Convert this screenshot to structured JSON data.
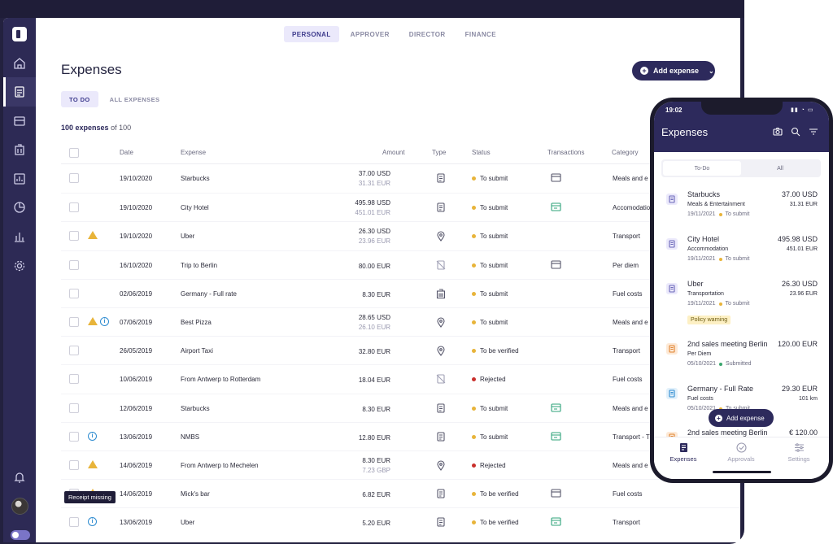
{
  "role_tabs": [
    "PERSONAL",
    "APPROVER",
    "DIRECTOR",
    "FINANCE"
  ],
  "page_title": "Expenses",
  "add_expense_label": "Add expense",
  "sub_tabs": [
    "TO DO",
    "ALL EXPENSES"
  ],
  "count": {
    "shown": "100 expenses",
    "rest": "of 100"
  },
  "columns": [
    "Date",
    "Expense",
    "Amount",
    "Type",
    "Status",
    "Transactions",
    "Category"
  ],
  "rows": [
    {
      "date": "19/10/2020",
      "expense": "Starbucks",
      "amount": "37.00 USD",
      "amount2": "31.31 EUR",
      "status": "To submit",
      "category": "Meals and e",
      "type_icon": "receipt-icon",
      "tx_icon": "card-icon",
      "flags": []
    },
    {
      "date": "19/10/2020",
      "expense": "City Hotel",
      "amount": "495.98 USD",
      "amount2": "451.01 EUR",
      "status": "To submit",
      "category": "Accomodatio",
      "type_icon": "receipt-icon",
      "tx_icon": "card-green-icon",
      "flags": []
    },
    {
      "date": "19/10/2020",
      "expense": "Uber",
      "amount": "26.30 USD",
      "amount2": "23.96 EUR",
      "status": "To submit",
      "category": "Transport",
      "type_icon": "pin-icon",
      "tx_icon": "",
      "flags": [
        "warn"
      ]
    },
    {
      "date": "16/10/2020",
      "expense": "Trip to Berlin",
      "amount": "80.00  EUR",
      "amount2": "",
      "status": "To submit",
      "category": "Per diem",
      "type_icon": "no-receipt-icon",
      "tx_icon": "card-icon",
      "flags": []
    },
    {
      "date": "02/06/2019",
      "expense": "Germany - Full rate",
      "amount": "8.30  EUR",
      "amount2": "",
      "status": "To submit",
      "category": "Fuel costs",
      "type_icon": "building-icon",
      "tx_icon": "",
      "flags": []
    },
    {
      "date": "07/06/2019",
      "expense": "Best Pizza",
      "amount": "28.65 USD",
      "amount2": "26.10 EUR",
      "status": "To submit",
      "category": "Meals and e",
      "type_icon": "pin-icon",
      "tx_icon": "",
      "flags": [
        "warn",
        "info"
      ]
    },
    {
      "date": "26/05/2019",
      "expense": "Airport Taxi",
      "amount": "32.80  EUR",
      "amount2": "",
      "status": "To be verified",
      "category": "Transport",
      "type_icon": "pin-icon",
      "tx_icon": "",
      "flags": []
    },
    {
      "date": "10/06/2019",
      "expense": "From Antwerp to Rotterdam",
      "amount": "18.04  EUR",
      "amount2": "",
      "status": "Rejected",
      "category": "Fuel costs",
      "type_icon": "no-receipt-icon",
      "tx_icon": "",
      "flags": []
    },
    {
      "date": "12/06/2019",
      "expense": "Starbucks",
      "amount": "8.30  EUR",
      "amount2": "",
      "status": "To submit",
      "category": "Meals and e",
      "type_icon": "receipt-icon",
      "tx_icon": "card-green-icon",
      "flags": []
    },
    {
      "date": "13/06/2019",
      "expense": "NMBS",
      "amount": "12.80  EUR",
      "amount2": "",
      "status": "To submit",
      "category": "Transport - T",
      "type_icon": "receipt-icon",
      "tx_icon": "card-green-icon",
      "flags": [
        "info"
      ]
    },
    {
      "date": "14/06/2019",
      "expense": "From Antwerp to Mechelen",
      "amount": "8.30 EUR",
      "amount2": "7.23 GBP",
      "status": "Rejected",
      "category": "Meals and e",
      "type_icon": "pin-icon",
      "tx_icon": "",
      "flags": [
        "warn"
      ]
    },
    {
      "date": "14/06/2019",
      "expense": "Mick's bar",
      "amount": "6.82  EUR",
      "amount2": "",
      "status": "To be verified",
      "category": "Fuel costs",
      "type_icon": "receipt-icon",
      "tx_icon": "card-icon",
      "flags": [
        "warn"
      ]
    },
    {
      "date": "13/06/2019",
      "expense": "Uber",
      "amount": "5.20  EUR",
      "amount2": "",
      "status": "To be verified",
      "category": "Transport",
      "type_icon": "receipt-icon",
      "tx_icon": "card-green-icon",
      "flags": [
        "info"
      ]
    }
  ],
  "tooltip": "Receipt missing",
  "phone": {
    "time": "19:02",
    "title": "Expenses",
    "segments": [
      "To-Do",
      "All"
    ],
    "items": [
      {
        "name": "Starbucks",
        "amount": "37.00 USD",
        "sub": "Meals & Entertainment",
        "amount2": "31.31 EUR",
        "date": "19/11/2021",
        "status": "To submit",
        "badge": ""
      },
      {
        "name": "City Hotel",
        "amount": "495.98 USD",
        "sub": "Accommodation",
        "amount2": "451.01 EUR",
        "date": "19/11/2021",
        "status": "To submit",
        "badge": ""
      },
      {
        "name": "Uber",
        "amount": "26.30 USD",
        "sub": "Transportation",
        "amount2": "23.96 EUR",
        "date": "19/11/2021",
        "status": "To submit",
        "badge": "Policy warning"
      },
      {
        "name": "2nd sales meeting Berlin",
        "amount": "120.00 EUR",
        "sub": "Per Diem",
        "amount2": "",
        "date": "05/10/2021",
        "status": "Submitted",
        "badge": ""
      },
      {
        "name": "Germany - Full Rate",
        "amount": "29.30 EUR",
        "sub": "Fuel costs",
        "amount2": "101 km",
        "date": "05/10/2021",
        "status": "To submit",
        "badge": ""
      },
      {
        "name": "2nd sales meeting Berlin",
        "amount": "€ 120.00",
        "sub": "",
        "amount2": "",
        "date": "",
        "status": "",
        "badge": ""
      }
    ],
    "fab_label": "Add expense",
    "nav": [
      "Expenses",
      "Approvals",
      "Settings"
    ]
  },
  "colors": {
    "brand": "#2d2a5c",
    "sidebar": "#2d2a55",
    "warning": "#e8b43a",
    "rejected": "#c9302c",
    "submitted": "#3aa66d",
    "info": "#2d8bd0"
  }
}
